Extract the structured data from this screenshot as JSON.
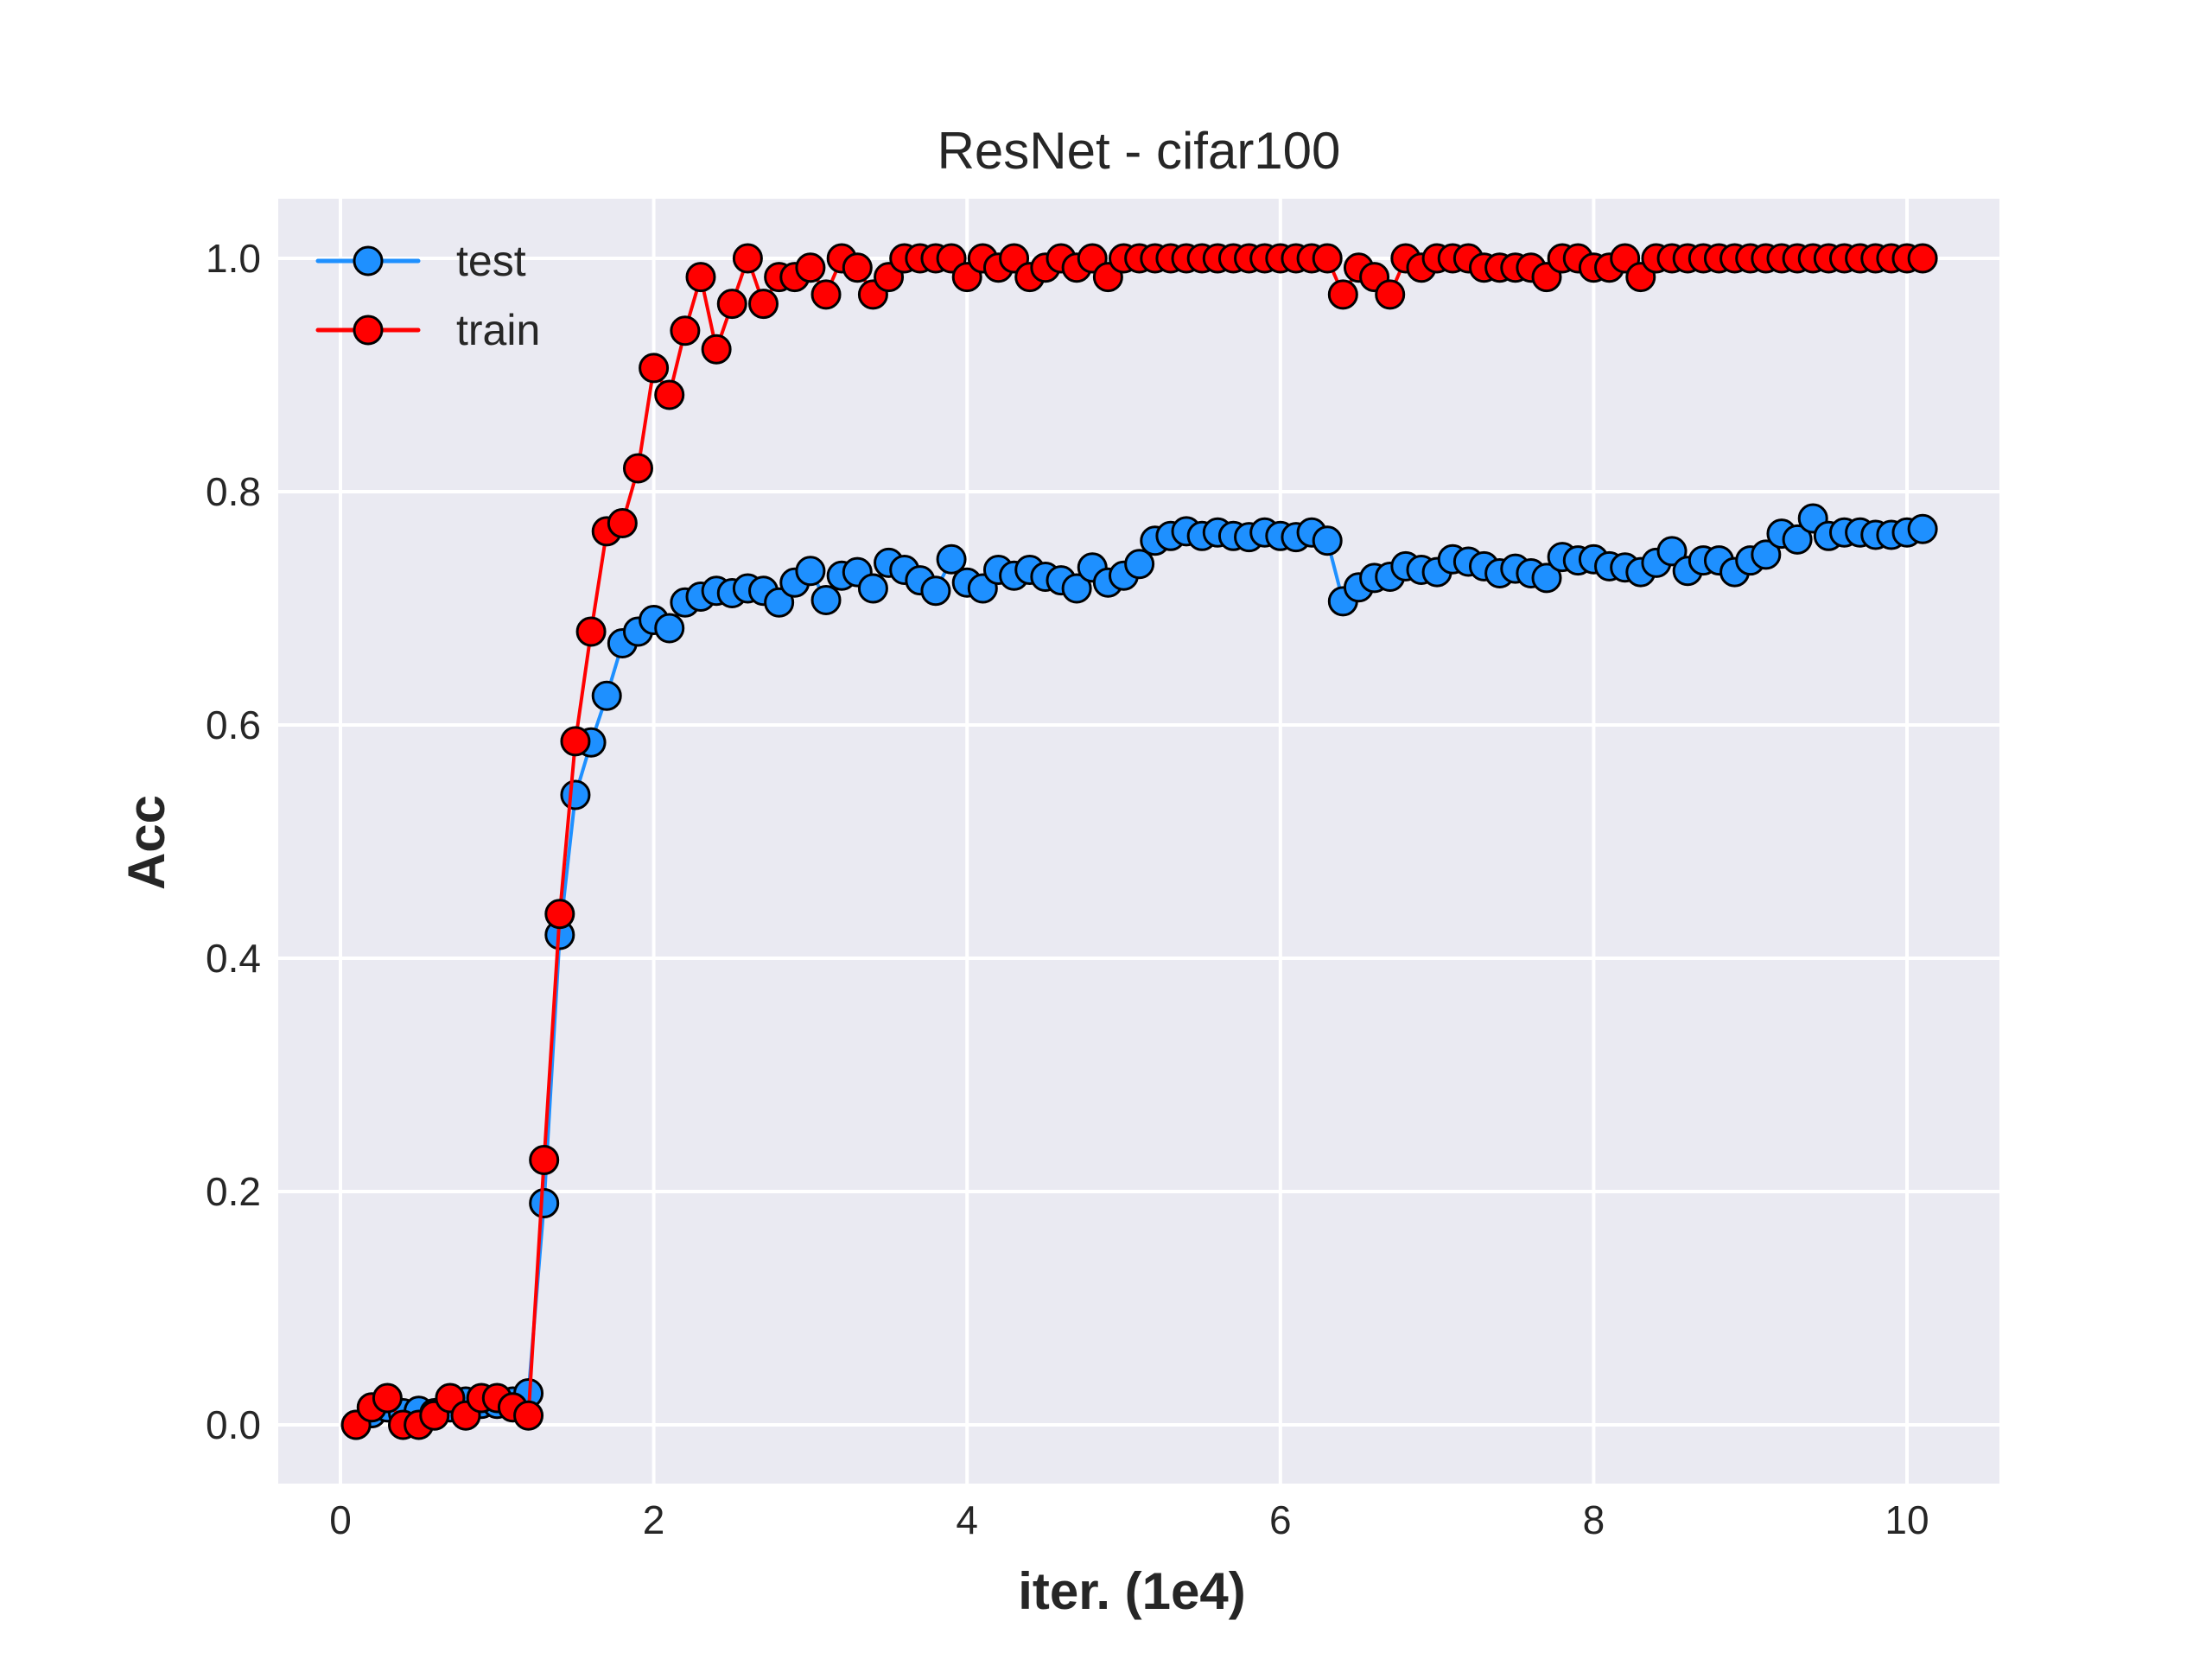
{
  "chart_data": {
    "type": "line",
    "title": "ResNet - cifar100",
    "xlabel": "iter. (1e4)",
    "ylabel": "Acc",
    "xlim": [
      -0.2,
      10.6
    ],
    "ylim": [
      -0.05,
      1.05
    ],
    "xticks": [
      0,
      2,
      4,
      6,
      8,
      10
    ],
    "xtick_labels": [
      "0",
      "2",
      "4",
      "6",
      "8",
      "10"
    ],
    "yticks": [
      0.0,
      0.2,
      0.4,
      0.6,
      0.8,
      1.0
    ],
    "ytick_labels": [
      "0.0",
      "0.2",
      "0.4",
      "0.6",
      "0.8",
      "1.0"
    ],
    "grid": true,
    "legend_position": "upper left",
    "background": "#eaeaf2",
    "x": [
      0.1,
      0.2,
      0.3,
      0.4,
      0.5,
      0.6,
      0.7,
      0.8,
      0.9,
      1.0,
      1.1,
      1.2,
      1.3,
      1.4,
      1.5,
      1.6,
      1.7,
      1.8,
      1.9,
      2.0,
      2.1,
      2.2,
      2.3,
      2.4,
      2.5,
      2.6,
      2.7,
      2.8,
      2.9,
      3.0,
      3.1,
      3.2,
      3.3,
      3.4,
      3.5,
      3.6,
      3.7,
      3.8,
      3.9,
      4.0,
      4.1,
      4.2,
      4.3,
      4.4,
      4.5,
      4.6,
      4.7,
      4.8,
      4.9,
      5.0,
      5.1,
      5.2,
      5.3,
      5.4,
      5.5,
      5.6,
      5.7,
      5.8,
      5.9,
      6.0,
      6.1,
      6.2,
      6.3,
      6.4,
      6.5,
      6.6,
      6.7,
      6.8,
      6.9,
      7.0,
      7.1,
      7.2,
      7.3,
      7.4,
      7.5,
      7.6,
      7.7,
      7.8,
      7.9,
      8.0,
      8.1,
      8.2,
      8.3,
      8.4,
      8.5,
      8.6,
      8.7,
      8.8,
      8.9,
      9.0,
      9.1,
      9.2,
      9.3,
      9.4,
      9.5,
      9.6,
      9.7,
      9.8,
      9.9,
      10.0,
      10.1
    ],
    "series": [
      {
        "name": "test",
        "color": "#1e90ff",
        "values": [
          0.0,
          0.01,
          0.015,
          0.01,
          0.012,
          0.01,
          0.015,
          0.02,
          0.018,
          0.018,
          0.02,
          0.027,
          0.19,
          0.42,
          0.54,
          0.585,
          0.625,
          0.67,
          0.68,
          0.69,
          0.683,
          0.705,
          0.71,
          0.715,
          0.713,
          0.717,
          0.715,
          0.705,
          0.722,
          0.732,
          0.707,
          0.728,
          0.731,
          0.717,
          0.739,
          0.733,
          0.724,
          0.715,
          0.742,
          0.722,
          0.717,
          0.733,
          0.728,
          0.733,
          0.727,
          0.724,
          0.717,
          0.735,
          0.722,
          0.728,
          0.738,
          0.758,
          0.762,
          0.766,
          0.762,
          0.765,
          0.762,
          0.761,
          0.765,
          0.762,
          0.761,
          0.765,
          0.758,
          0.706,
          0.718,
          0.726,
          0.727,
          0.736,
          0.733,
          0.731,
          0.742,
          0.74,
          0.736,
          0.73,
          0.734,
          0.73,
          0.726,
          0.744,
          0.741,
          0.742,
          0.736,
          0.735,
          0.731,
          0.739,
          0.749,
          0.732,
          0.741,
          0.741,
          0.731,
          0.741,
          0.746,
          0.764,
          0.759,
          0.777,
          0.762,
          0.765,
          0.765,
          0.763,
          0.763,
          0.765,
          0.768
        ]
      },
      {
        "name": "train",
        "color": "#ff0000",
        "values": [
          0.0,
          0.015,
          0.023,
          0.0,
          0.0,
          0.008,
          0.023,
          0.008,
          0.023,
          0.023,
          0.015,
          0.008,
          0.227,
          0.438,
          0.586,
          0.68,
          0.766,
          0.773,
          0.82,
          0.906,
          0.883,
          0.938,
          0.984,
          0.922,
          0.961,
          1.0,
          0.961,
          0.984,
          0.984,
          0.992,
          0.969,
          1.0,
          0.992,
          0.969,
          0.984,
          1.0,
          1.0,
          1.0,
          1.0,
          0.984,
          1.0,
          0.992,
          1.0,
          0.984,
          0.992,
          1.0,
          0.992,
          1.0,
          0.984,
          1.0,
          1.0,
          1.0,
          1.0,
          1.0,
          1.0,
          1.0,
          1.0,
          1.0,
          1.0,
          1.0,
          1.0,
          1.0,
          1.0,
          0.969,
          0.992,
          0.984,
          0.969,
          1.0,
          0.992,
          1.0,
          1.0,
          1.0,
          0.992,
          0.992,
          0.992,
          0.992,
          0.984,
          1.0,
          1.0,
          0.992,
          0.992,
          1.0,
          0.984,
          1.0,
          1.0,
          1.0,
          1.0,
          1.0,
          1.0,
          1.0,
          1.0,
          1.0,
          1.0,
          1.0,
          1.0,
          1.0,
          1.0,
          1.0,
          1.0,
          1.0,
          1.0
        ]
      }
    ]
  }
}
